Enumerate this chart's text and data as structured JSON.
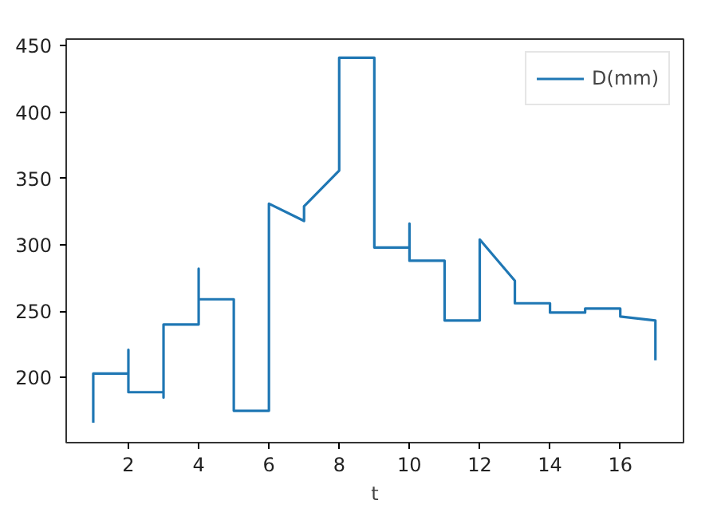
{
  "chart_data": {
    "type": "line",
    "xlabel": "t",
    "series": [
      {
        "name": "D(mm)",
        "color": "#1f77b4",
        "x": [
          1,
          1,
          2,
          2,
          2,
          3,
          3,
          3,
          4,
          4,
          4,
          5,
          5,
          6,
          6,
          7,
          7,
          8,
          8,
          9,
          9,
          10,
          10,
          10,
          11,
          11,
          12,
          12,
          13,
          13,
          14,
          14,
          15,
          15,
          16,
          16,
          17,
          17
        ],
        "values": [
          166,
          203,
          203,
          221,
          189,
          189,
          185,
          240,
          240,
          282,
          259,
          259,
          175,
          175,
          331,
          318,
          329,
          356,
          441,
          441,
          298,
          298,
          316,
          288,
          288,
          243,
          243,
          304,
          273,
          256,
          256,
          249,
          249,
          252,
          252,
          246,
          243,
          213
        ]
      }
    ],
    "xlim": [
      0.23,
      17.8
    ],
    "ylim": [
      151,
      455
    ],
    "xticks": [
      2,
      4,
      6,
      8,
      10,
      12,
      14,
      16
    ],
    "yticks": [
      200,
      250,
      300,
      350,
      400,
      450
    ],
    "grid": false,
    "legend": "top right",
    "marker": "none",
    "line_style": "solid"
  }
}
